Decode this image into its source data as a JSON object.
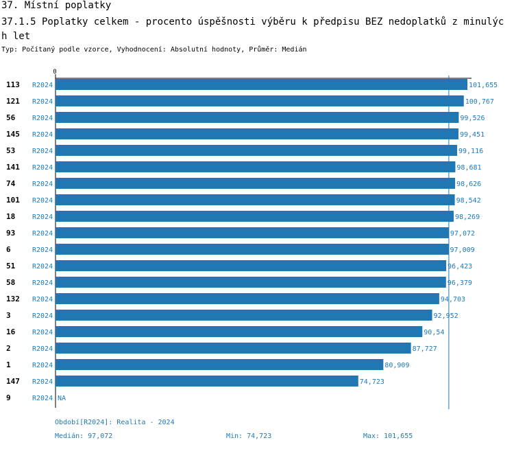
{
  "header": {
    "title": "37. Místní poplatky",
    "subtitle": "37.1.5 Poplatky celkem - procento úspěšnosti výběru k předpisu BEZ nedoplatků z minulých let",
    "meta": "Typ: Počítaný podle vzorce, Vyhodnocení: Absolutní hodnoty, Průměr: Medián"
  },
  "colors": {
    "bar": "#1f78b4",
    "label": "#1f78b4",
    "axis": "#000000",
    "median_line": "#1f78b4"
  },
  "chart_data": {
    "type": "bar",
    "orientation": "horizontal",
    "axis_zero_label": "0",
    "series_tag": "R2024",
    "xlim": [
      0,
      101.655
    ],
    "median": 97.072,
    "na_label": "NA",
    "rows": [
      {
        "id": "113",
        "value": 101.655,
        "label": "101,655"
      },
      {
        "id": "121",
        "value": 100.767,
        "label": "100,767"
      },
      {
        "id": "56",
        "value": 99.526,
        "label": "99,526"
      },
      {
        "id": "145",
        "value": 99.451,
        "label": "99,451"
      },
      {
        "id": "53",
        "value": 99.116,
        "label": "99,116"
      },
      {
        "id": "141",
        "value": 98.681,
        "label": "98,681"
      },
      {
        "id": "74",
        "value": 98.626,
        "label": "98,626"
      },
      {
        "id": "101",
        "value": 98.542,
        "label": "98,542"
      },
      {
        "id": "18",
        "value": 98.269,
        "label": "98,269"
      },
      {
        "id": "93",
        "value": 97.072,
        "label": "97,072"
      },
      {
        "id": "6",
        "value": 97.009,
        "label": "97,009"
      },
      {
        "id": "51",
        "value": 96.423,
        "label": "96,423"
      },
      {
        "id": "58",
        "value": 96.379,
        "label": "96,379"
      },
      {
        "id": "132",
        "value": 94.703,
        "label": "94,703"
      },
      {
        "id": "3",
        "value": 92.952,
        "label": "92,952"
      },
      {
        "id": "16",
        "value": 90.54,
        "label": "90,54"
      },
      {
        "id": "2",
        "value": 87.727,
        "label": "87,727"
      },
      {
        "id": "1",
        "value": 80.909,
        "label": "80,909"
      },
      {
        "id": "147",
        "value": 74.723,
        "label": "74,723"
      },
      {
        "id": "9",
        "value": null,
        "label": "NA"
      }
    ]
  },
  "footer": {
    "period": "Období[R2024]: Realita - 2024",
    "median": "Medián: 97,072",
    "min": "Min: 74,723",
    "max": "Max: 101,655"
  }
}
